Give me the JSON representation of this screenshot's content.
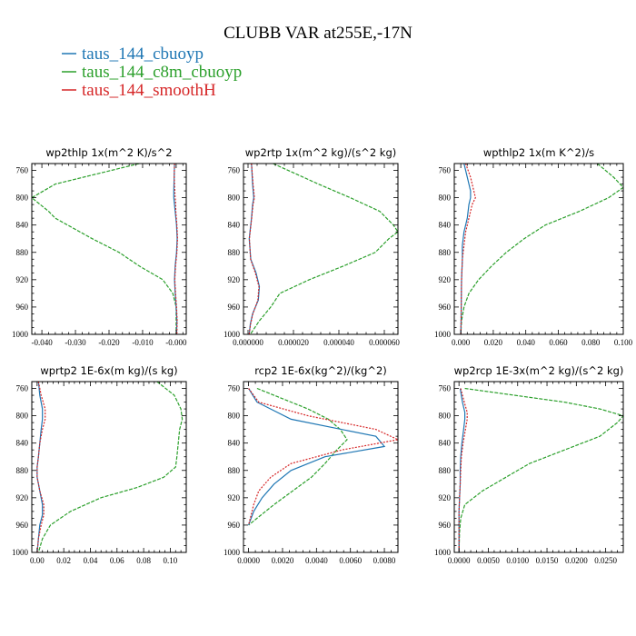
{
  "title": "CLUBB VAR at255E,-17N",
  "legend": [
    {
      "label": "taus_144_cbuoyp",
      "color": "#1f77b4"
    },
    {
      "label": "taus_144_c8m_cbuoyp",
      "color": "#2ca02c"
    },
    {
      "label": "taus_144_smoothH",
      "color": "#d62728"
    }
  ],
  "series_colors": {
    "cbuoyp": "#1f77b4",
    "c8m_cbuoyp": "#2ca02c",
    "smoothH": "#d62728"
  },
  "chart_data": [
    {
      "type": "line",
      "title": "wp2thlp  1x(m^2 K)/s^2",
      "xlim": [
        -0.043,
        0.003
      ],
      "ylim": [
        1000,
        750
      ],
      "xticks": [
        "-0.040",
        "-0.030",
        "-0.020",
        "-0.010",
        "-0.000"
      ],
      "xtick_values": [
        -0.04,
        -0.03,
        -0.02,
        -0.01,
        0.0
      ],
      "yticks": [
        "760",
        "800",
        "840",
        "880",
        "920",
        "960",
        "1000"
      ],
      "ytick_values": [
        760,
        800,
        840,
        880,
        920,
        960,
        1000
      ],
      "series": [
        {
          "key": "cbuoyp",
          "y": [
            750,
            770,
            790,
            800,
            805,
            820,
            840,
            860,
            880,
            900,
            920,
            940,
            960,
            980,
            1000
          ],
          "x": [
            -0.0005,
            -0.0006,
            -0.0007,
            -0.0007,
            -0.0006,
            -0.0003,
            0.0001,
            0.0003,
            0.0001,
            -0.0003,
            -0.0005,
            -0.0003,
            0.0,
            0.0002,
            0.0001
          ]
        },
        {
          "key": "smoothH",
          "y": [
            750,
            770,
            790,
            800,
            805,
            820,
            840,
            860,
            880,
            900,
            920,
            940,
            960,
            980,
            1000
          ],
          "x": [
            -0.0005,
            -0.0006,
            -0.0004,
            -0.0003,
            -0.0002,
            -0.0001,
            0.0002,
            0.0004,
            0.0002,
            -0.0002,
            -0.0004,
            -0.0002,
            0.0001,
            0.0003,
            0.0002
          ]
        },
        {
          "key": "c8m_cbuoyp",
          "y": [
            750,
            780,
            800,
            820,
            830,
            860,
            880,
            900,
            920,
            940,
            960,
            980,
            1000
          ],
          "x": [
            -0.011,
            -0.036,
            -0.043,
            -0.038,
            -0.036,
            -0.025,
            -0.017,
            -0.011,
            -0.004,
            -0.001,
            0.0,
            0.0,
            0.0
          ]
        }
      ]
    },
    {
      "type": "line",
      "title": "wp2rtp  1x(m^2 kg)/(s^2 kg)",
      "xlim": [
        -2e-06,
        6.6e-05
      ],
      "ylim": [
        1000,
        750
      ],
      "xticks": [
        "0.000000",
        "0.000020",
        "0.000040",
        "0.000060"
      ],
      "xtick_values": [
        0.0,
        2e-05,
        4e-05,
        6e-05
      ],
      "yticks": [
        "760",
        "800",
        "840",
        "880",
        "920",
        "960",
        "1000"
      ],
      "ytick_values": [
        760,
        800,
        840,
        880,
        920,
        960,
        1000
      ],
      "series": [
        {
          "key": "cbuoyp",
          "y": [
            750,
            780,
            800,
            810,
            830,
            860,
            890,
            910,
            930,
            950,
            970,
            985,
            1000
          ],
          "x": [
            1.5e-06,
            2e-06,
            2.5e-06,
            2e-06,
            1.5e-06,
            5e-07,
            1.2e-06,
            3.5e-06,
            5e-06,
            4.5e-06,
            2e-06,
            1e-06,
            5e-07
          ]
        },
        {
          "key": "smoothH",
          "y": [
            750,
            780,
            800,
            810,
            830,
            860,
            890,
            910,
            930,
            950,
            970,
            985,
            1000
          ],
          "x": [
            1.5e-06,
            2.2e-06,
            2.8e-06,
            2.2e-06,
            1.6e-06,
            6e-07,
            1.1e-06,
            3.2e-06,
            4.8e-06,
            4.3e-06,
            2.1e-06,
            1.1e-06,
            5e-07
          ]
        },
        {
          "key": "c8m_cbuoyp",
          "y": [
            750,
            780,
            800,
            820,
            840,
            850,
            860,
            880,
            900,
            920,
            940,
            960,
            980,
            1000
          ],
          "x": [
            1.1e-05,
            3.1e-05,
            4.5e-05,
            5.8e-05,
            6.4e-05,
            6.6e-05,
            6.2e-05,
            5.6e-05,
            4.2e-05,
            2.7e-05,
            1.4e-05,
            1e-05,
            5e-06,
            1e-06
          ]
        }
      ]
    },
    {
      "type": "line",
      "title": "wpthlp2  1x(m K^2)/s",
      "xlim": [
        -0.004,
        0.1
      ],
      "ylim": [
        1000,
        750
      ],
      "xticks": [
        "0.000",
        "0.020",
        "0.040",
        "0.060",
        "0.080",
        "0.100"
      ],
      "xtick_values": [
        0.0,
        0.02,
        0.04,
        0.06,
        0.08,
        0.1
      ],
      "yticks": [
        "760",
        "800",
        "840",
        "880",
        "920",
        "960",
        "1000"
      ],
      "ytick_values": [
        760,
        800,
        840,
        880,
        920,
        960,
        1000
      ],
      "series": [
        {
          "key": "cbuoyp",
          "y": [
            750,
            770,
            790,
            800,
            810,
            830,
            850,
            870,
            890,
            920,
            950,
            980,
            1000
          ],
          "x": [
            0.002,
            0.004,
            0.006,
            0.006,
            0.005,
            0.004,
            0.002,
            0.001,
            0.001,
            0.0005,
            0.0003,
            0.0002,
            0.0
          ]
        },
        {
          "key": "smoothH",
          "y": [
            750,
            770,
            790,
            800,
            810,
            830,
            850,
            870,
            890,
            920,
            950,
            980,
            1000
          ],
          "x": [
            0.003,
            0.006,
            0.008,
            0.009,
            0.007,
            0.005,
            0.003,
            0.002,
            0.001,
            0.0005,
            0.0003,
            0.0002,
            0.0
          ]
        },
        {
          "key": "c8m_cbuoyp",
          "y": [
            750,
            770,
            785,
            800,
            820,
            840,
            860,
            880,
            900,
            920,
            940,
            960,
            980,
            1000
          ],
          "x": [
            0.084,
            0.094,
            0.1,
            0.091,
            0.073,
            0.052,
            0.039,
            0.028,
            0.019,
            0.011,
            0.005,
            0.002,
            0.0005,
            0.0
          ]
        }
      ]
    },
    {
      "type": "line",
      "title": "wprtp2  1E-6x(m kg)/(s kg)",
      "xlim": [
        -0.004,
        0.112
      ],
      "ylim": [
        1000,
        750
      ],
      "xticks": [
        "0.00",
        "0.02",
        "0.04",
        "0.06",
        "0.08",
        "0.10"
      ],
      "xtick_values": [
        0.0,
        0.02,
        0.04,
        0.06,
        0.08,
        0.1
      ],
      "yticks": [
        "760",
        "800",
        "840",
        "880",
        "920",
        "960",
        "1000"
      ],
      "ytick_values": [
        760,
        800,
        840,
        880,
        920,
        960,
        1000
      ],
      "series": [
        {
          "key": "cbuoyp",
          "y": [
            750,
            770,
            790,
            805,
            820,
            840,
            860,
            875,
            890,
            910,
            930,
            945,
            960,
            980,
            1000
          ],
          "x": [
            0.001,
            0.002,
            0.004,
            0.004,
            0.003,
            0.002,
            0.001,
            0.0,
            0.0,
            0.002,
            0.004,
            0.004,
            0.002,
            0.001,
            0.0
          ]
        },
        {
          "key": "smoothH",
          "y": [
            750,
            770,
            790,
            805,
            820,
            840,
            860,
            875,
            890,
            910,
            930,
            945,
            960,
            980,
            1000
          ],
          "x": [
            0.001,
            0.003,
            0.006,
            0.006,
            0.004,
            0.002,
            0.001,
            0.0,
            0.0,
            0.002,
            0.005,
            0.005,
            0.003,
            0.001,
            0.0
          ]
        },
        {
          "key": "c8m_cbuoyp",
          "y": [
            750,
            770,
            790,
            805,
            820,
            840,
            860,
            875,
            890,
            905,
            920,
            940,
            960,
            980,
            1000
          ],
          "x": [
            0.09,
            0.103,
            0.108,
            0.109,
            0.107,
            0.106,
            0.105,
            0.104,
            0.095,
            0.075,
            0.048,
            0.025,
            0.01,
            0.004,
            0.001
          ]
        }
      ]
    },
    {
      "type": "line",
      "title": "rcp2  1E-6x(kg^2)/(kg^2)",
      "xlim": [
        -0.0003,
        0.0088
      ],
      "ylim": [
        1000,
        750
      ],
      "xticks": [
        "0.0000",
        "0.0020",
        "0.0040",
        "0.0060",
        "0.0080"
      ],
      "xtick_values": [
        0.0,
        0.002,
        0.004,
        0.006,
        0.008
      ],
      "yticks": [
        "760",
        "800",
        "840",
        "880",
        "920",
        "960",
        "1000"
      ],
      "ytick_values": [
        760,
        800,
        840,
        880,
        920,
        960,
        1000
      ],
      "series": [
        {
          "key": "cbuoyp",
          "y": [
            760,
            780,
            805,
            830,
            845,
            860,
            880,
            900,
            920,
            940,
            960
          ],
          "x": [
            0.0,
            0.0005,
            0.0025,
            0.0075,
            0.008,
            0.0045,
            0.0025,
            0.0015,
            0.0008,
            0.0003,
            0.0
          ]
        },
        {
          "key": "smoothH",
          "y": [
            760,
            780,
            800,
            820,
            835,
            850,
            870,
            890,
            910,
            930,
            950,
            960
          ],
          "x": [
            0.0,
            0.0006,
            0.0035,
            0.0075,
            0.0088,
            0.0055,
            0.0025,
            0.0013,
            0.0006,
            0.0003,
            0.0001,
            0.0
          ]
        },
        {
          "key": "c8m_cbuoyp",
          "y": [
            760,
            775,
            790,
            805,
            820,
            835,
            850,
            870,
            890,
            910,
            930,
            950,
            960
          ],
          "x": [
            0.0005,
            0.002,
            0.0035,
            0.0047,
            0.0054,
            0.0058,
            0.0052,
            0.0045,
            0.0037,
            0.0026,
            0.0015,
            0.0005,
            0.0
          ]
        }
      ]
    },
    {
      "type": "line",
      "title": "wp2rcp  1E-3x(m^2 kg)/(s^2 kg)",
      "xlim": [
        -0.0008,
        0.028
      ],
      "ylim": [
        1000,
        750
      ],
      "xticks": [
        "0.0000",
        "0.0050",
        "0.0100",
        "0.0150",
        "0.0200",
        "0.0250"
      ],
      "xtick_values": [
        0.0,
        0.005,
        0.01,
        0.015,
        0.02,
        0.025
      ],
      "yticks": [
        "760",
        "800",
        "840",
        "880",
        "920",
        "960",
        "1000"
      ],
      "ytick_values": [
        760,
        800,
        840,
        880,
        920,
        960,
        1000
      ],
      "series": [
        {
          "key": "cbuoyp",
          "y": [
            760,
            780,
            795,
            805,
            820,
            840,
            860,
            880,
            900,
            920,
            940,
            960,
            1000
          ],
          "x": [
            0.0002,
            0.0006,
            0.001,
            0.001,
            0.0008,
            0.0005,
            0.0003,
            0.0002,
            0.0002,
            0.0001,
            0.0,
            0.0,
            0.0
          ]
        },
        {
          "key": "smoothH",
          "y": [
            760,
            780,
            795,
            805,
            820,
            840,
            860,
            880,
            900,
            920,
            940,
            960,
            1000
          ],
          "x": [
            0.0003,
            0.0009,
            0.0014,
            0.0014,
            0.0011,
            0.0007,
            0.0004,
            0.0003,
            0.0002,
            0.0001,
            0.0,
            0.0,
            0.0
          ]
        },
        {
          "key": "c8m_cbuoyp",
          "y": [
            760,
            780,
            790,
            800,
            810,
            830,
            850,
            870,
            890,
            910,
            930,
            950,
            970,
            1000
          ],
          "x": [
            0.001,
            0.018,
            0.024,
            0.028,
            0.027,
            0.024,
            0.018,
            0.012,
            0.008,
            0.004,
            0.001,
            0.0003,
            0.0001,
            0.0
          ]
        }
      ]
    }
  ]
}
